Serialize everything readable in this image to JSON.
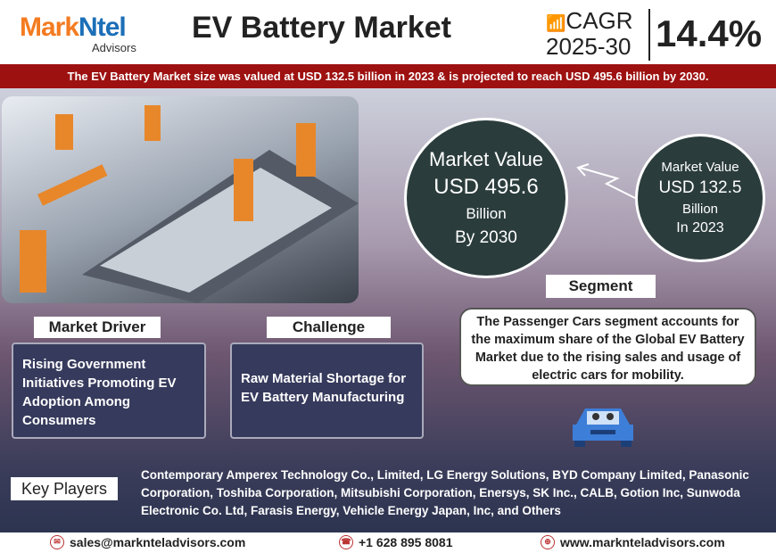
{
  "header": {
    "logo_brand_a": "Mark",
    "logo_brand_b": "Ntel",
    "logo_sub": "Advisors",
    "title": "EV Battery Market",
    "cagr_label": "CAGR",
    "cagr_period": "2025-30",
    "cagr_value": "14.4%"
  },
  "banner": "The  EV Battery Market size was valued at USD 132.5 billion in 2023 & is projected to reach USD 495.6 billion by 2030.",
  "future": {
    "label": "Market Value",
    "value": "USD 495.6",
    "unit": "Billion",
    "year": "By 2030"
  },
  "current": {
    "label": "Market Value",
    "value": "USD 132.5",
    "unit": "Billion",
    "year": "In 2023"
  },
  "segment": {
    "label": "Segment",
    "text": "The Passenger Cars segment accounts for the maximum share of the Global EV Battery Market due to the rising sales and usage of electric cars for mobility."
  },
  "driver": {
    "label": "Market Driver",
    "text": "Rising Government Initiatives Promoting EV Adoption Among Consumers"
  },
  "challenge": {
    "label": "Challenge",
    "text": "Raw Material Shortage for EV Battery Manufacturing"
  },
  "players": {
    "label": "Key Players",
    "text": "Contemporary Amperex Technology Co., Limited, LG Energy Solutions, BYD Company Limited, Panasonic Corporation, Toshiba Corporation, Mitsubishi Corporation, Enersys, SK Inc., CALB, Gotion Inc, Sunwoda Electronic Co. Ltd, Farasis Energy, Vehicle Energy Japan, Inc, and Others"
  },
  "footer": {
    "email": "sales@marknteladvisors.com",
    "phone": "+1 628 895 8081",
    "web": "www.marknteladvisors.com"
  },
  "colors": {
    "banner": "#9e1111",
    "circle": "#2b3c3c",
    "logo_orange": "#f47b20",
    "logo_blue": "#1c6fb7"
  }
}
